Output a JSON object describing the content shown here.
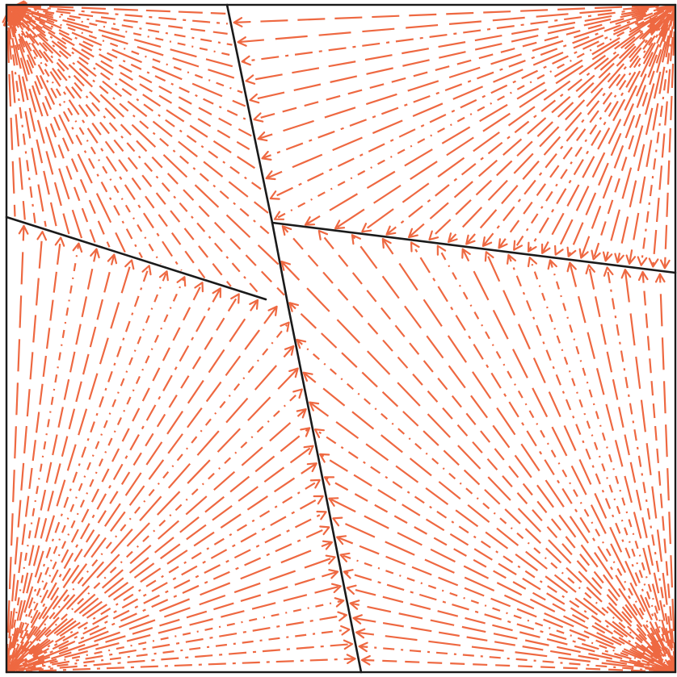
{
  "diagram": {
    "type": "vector-flow-field",
    "colors": {
      "background": "#ffffff",
      "ray": "#ee6841",
      "boundary": "#1a1a1a"
    },
    "corners": [
      "top-left",
      "top-right",
      "bottom-left",
      "bottom-right"
    ],
    "regions": [
      {
        "name": "top-left-region",
        "corner": "top-left",
        "arrow_direction": "into-region"
      },
      {
        "name": "top-right-region",
        "corner": "top-right",
        "arrow_direction": "toward-boundary"
      },
      {
        "name": "bottom-left-region",
        "corner": "bottom-left",
        "arrow_direction": "toward-boundary"
      },
      {
        "name": "bottom-right-region",
        "corner": "bottom-right",
        "arrow_direction": "toward-boundary"
      }
    ]
  }
}
